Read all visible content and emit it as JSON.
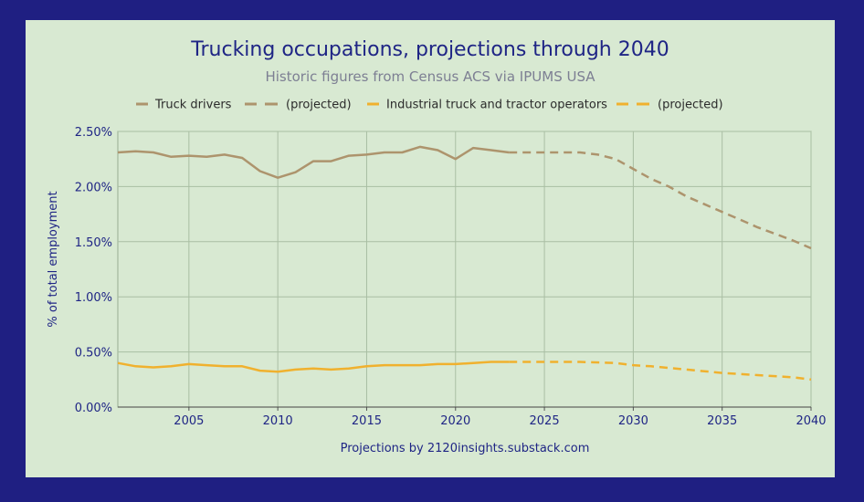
{
  "colors": {
    "truck_drivers": "#ad946d",
    "industrial": "#f0b12e"
  },
  "chart_data": {
    "type": "line",
    "title": "Trucking occupations, projections through 2040",
    "subtitle": "Historic figures from Census ACS via IPUMS USA",
    "xlabel": "",
    "ylabel": "% of total employment",
    "footer": "Projections by 2120insights.substack.com",
    "xlim": [
      2001,
      2040
    ],
    "ylim": [
      0,
      2.5
    ],
    "x_ticks": [
      2005,
      2010,
      2015,
      2020,
      2025,
      2030,
      2035,
      2040
    ],
    "y_ticks": [
      0,
      0.5,
      1.0,
      1.5,
      2.0,
      2.5
    ],
    "y_tick_labels": [
      "0.00%",
      "0.50%",
      "1.00%",
      "1.50%",
      "2.00%",
      "2.50%"
    ],
    "legend": [
      "Truck drivers",
      "(projected)",
      "Industrial truck and tractor operators",
      "(projected)"
    ],
    "series": [
      {
        "name": "Truck drivers",
        "style": "solid",
        "color_key": "truck_drivers",
        "x": [
          2001,
          2002,
          2003,
          2004,
          2005,
          2006,
          2007,
          2008,
          2009,
          2010,
          2011,
          2012,
          2013,
          2014,
          2015,
          2016,
          2017,
          2018,
          2019,
          2020,
          2021,
          2022,
          2023
        ],
        "values": [
          2.31,
          2.32,
          2.31,
          2.27,
          2.28,
          2.27,
          2.29,
          2.26,
          2.14,
          2.08,
          2.13,
          2.23,
          2.23,
          2.28,
          2.29,
          2.31,
          2.31,
          2.36,
          2.33,
          2.25,
          2.35,
          2.33,
          2.31
        ]
      },
      {
        "name": "(projected)",
        "style": "dashed",
        "color_key": "truck_drivers",
        "x": [
          2023,
          2024,
          2025,
          2026,
          2027,
          2028,
          2029,
          2030,
          2031,
          2032,
          2033,
          2034,
          2035,
          2036,
          2037,
          2038,
          2039,
          2040
        ],
        "values": [
          2.31,
          2.31,
          2.31,
          2.31,
          2.31,
          2.29,
          2.25,
          2.16,
          2.07,
          2.0,
          1.91,
          1.84,
          1.77,
          1.7,
          1.63,
          1.57,
          1.51,
          1.44
        ]
      },
      {
        "name": "Industrial truck and tractor operators",
        "style": "solid",
        "color_key": "industrial",
        "x": [
          2001,
          2002,
          2003,
          2004,
          2005,
          2006,
          2007,
          2008,
          2009,
          2010,
          2011,
          2012,
          2013,
          2014,
          2015,
          2016,
          2017,
          2018,
          2019,
          2020,
          2021,
          2022,
          2023
        ],
        "values": [
          0.4,
          0.37,
          0.36,
          0.37,
          0.39,
          0.38,
          0.37,
          0.37,
          0.33,
          0.32,
          0.34,
          0.35,
          0.34,
          0.35,
          0.37,
          0.38,
          0.38,
          0.38,
          0.39,
          0.39,
          0.4,
          0.41,
          0.41
        ]
      },
      {
        "name": "(projected)",
        "style": "dashed",
        "color_key": "industrial",
        "x": [
          2023,
          2025,
          2027,
          2029,
          2030,
          2031,
          2033,
          2035,
          2037,
          2039,
          2040
        ],
        "values": [
          0.41,
          0.41,
          0.41,
          0.4,
          0.38,
          0.37,
          0.34,
          0.31,
          0.29,
          0.27,
          0.25
        ]
      }
    ]
  }
}
